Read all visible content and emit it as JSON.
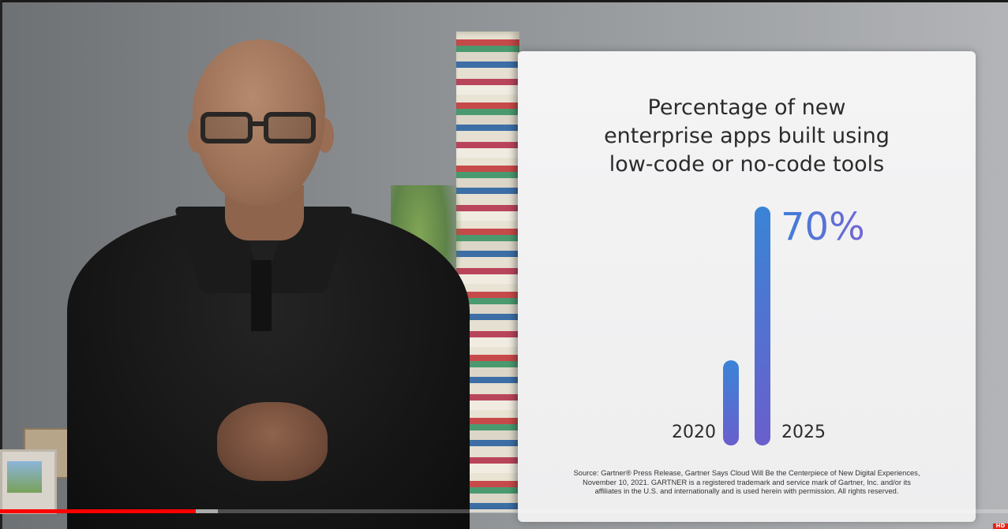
{
  "slide": {
    "title_lines": [
      "Percentage of new",
      "enterprise apps built using",
      "low-code or no-code tools"
    ],
    "source_lines": [
      "Source: Gartner® Press Release, Gartner Says Cloud Will Be the Centerpiece of New Digital Experiences,",
      "November 10, 2021. GARTNER is a registered trademark and service mark of Gartner, Inc. and/or its",
      "affiliates in the U.S. and internationally and is used herein with permission. All rights reserved."
    ]
  },
  "chart_data": {
    "type": "bar",
    "title": "Percentage of new enterprise apps built using low-code or no-code tools",
    "categories": [
      "2020",
      "2025"
    ],
    "values": [
      25,
      70
    ],
    "value_labels": [
      "",
      "70%"
    ],
    "ylim": [
      0,
      70
    ],
    "grid": false,
    "colors": [
      "#3a84d6",
      "#6a5fcc"
    ]
  },
  "player": {
    "progress_played": 0.194,
    "progress_buffered": 0.216,
    "quality_badge": "HD",
    "accent_color": "#ff0000"
  }
}
